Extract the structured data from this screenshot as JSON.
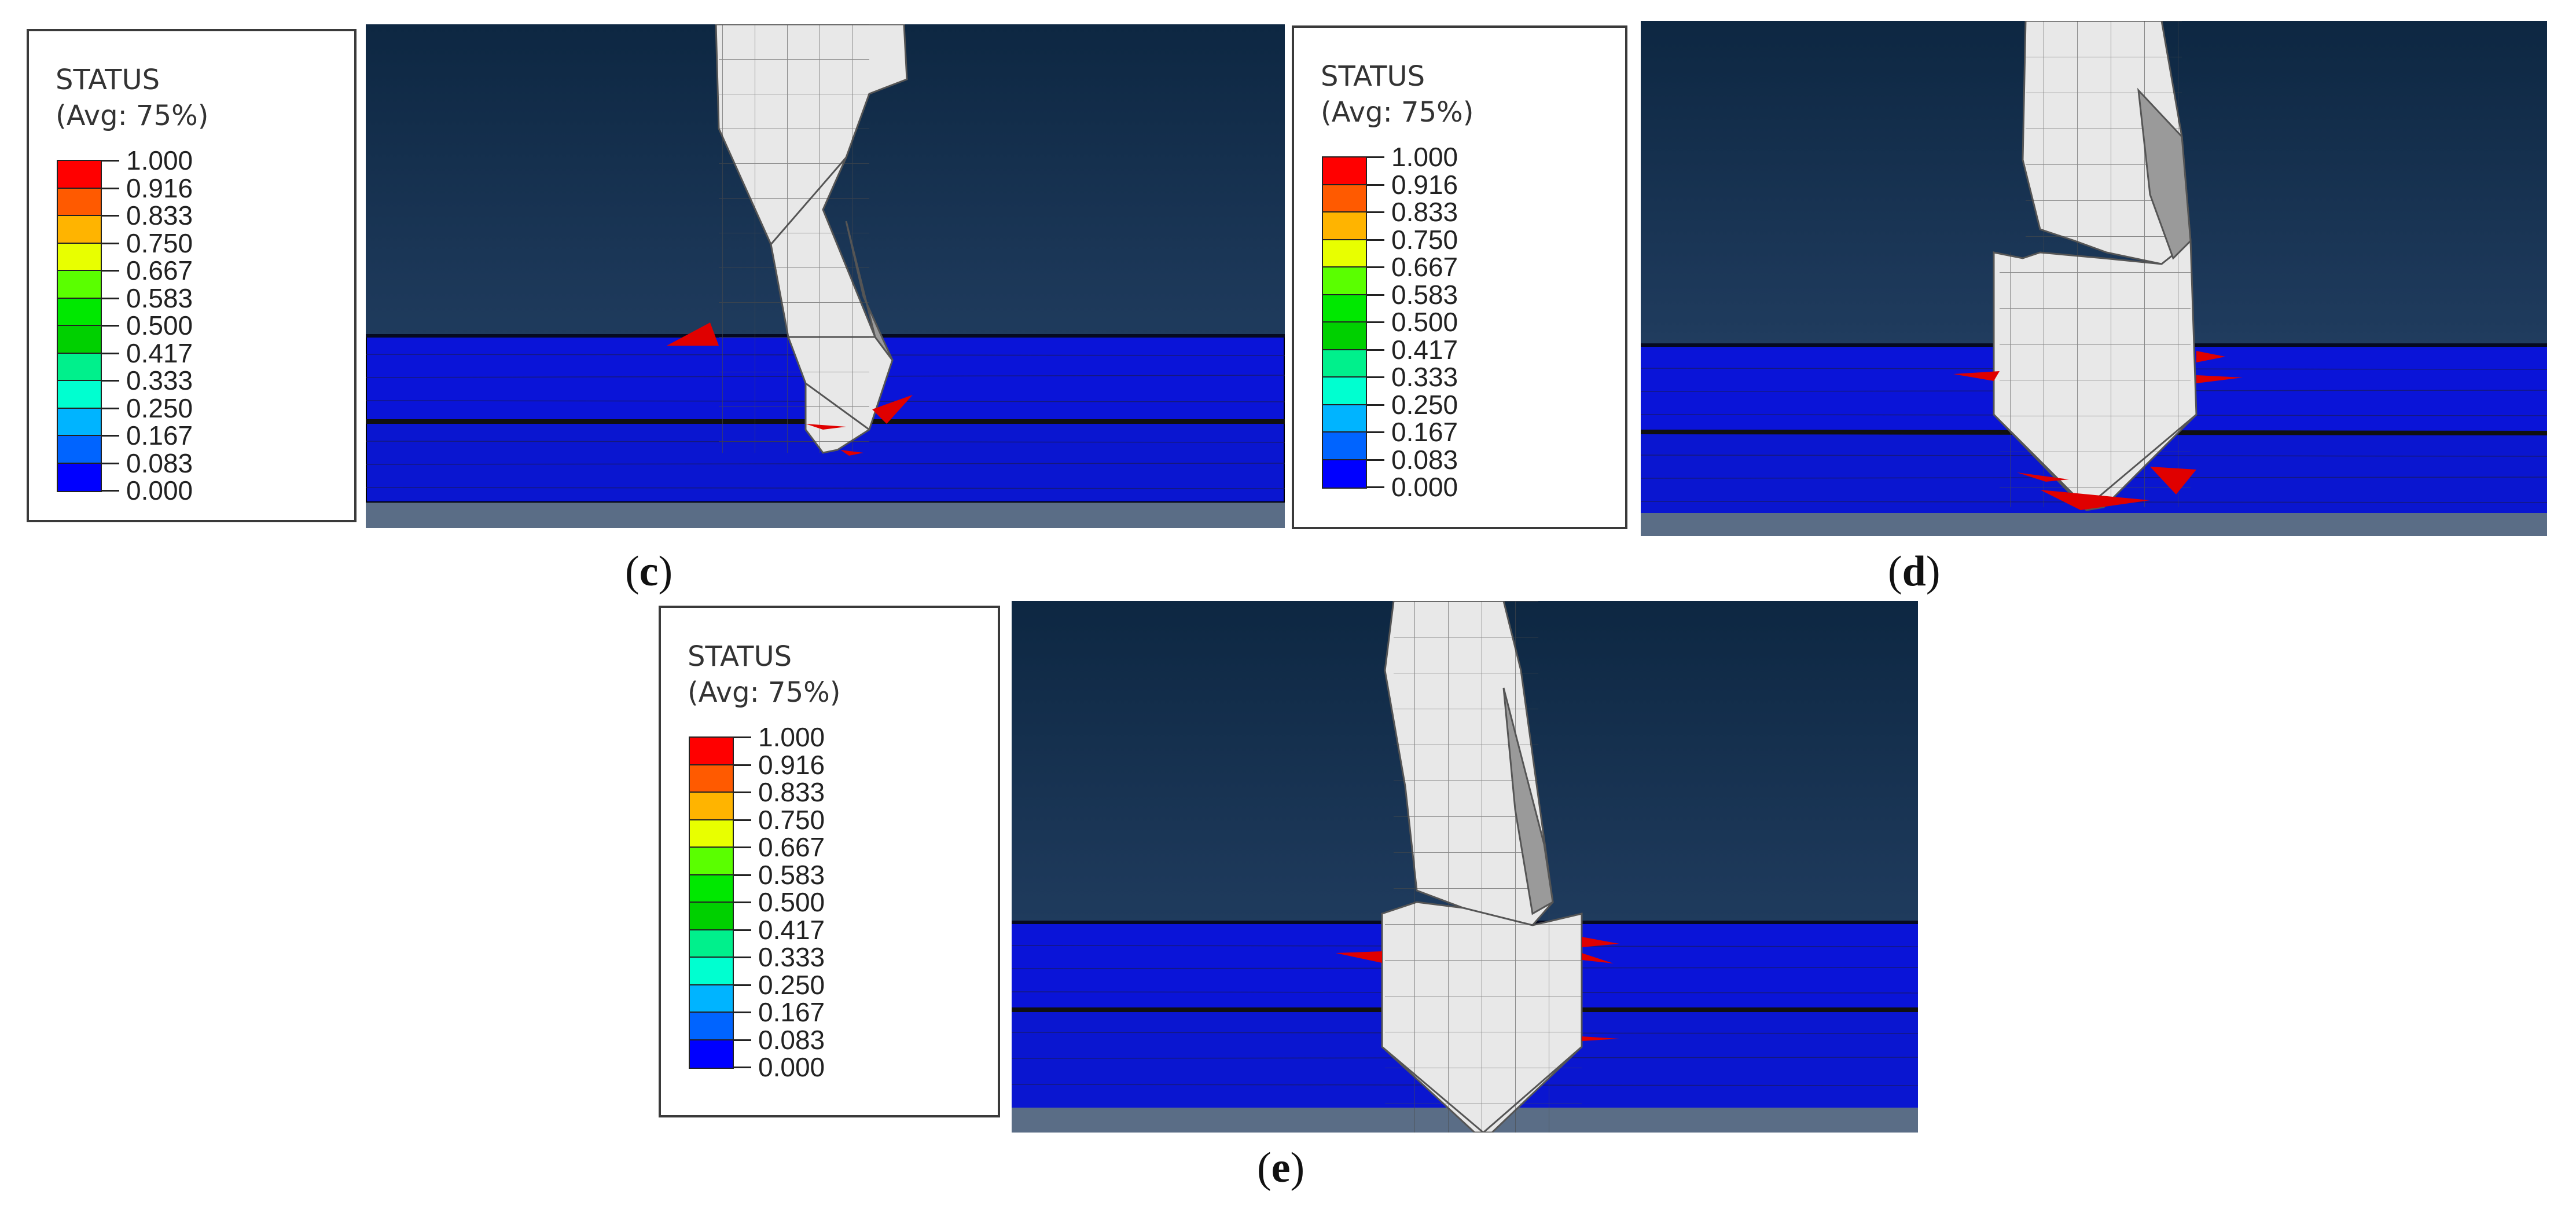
{
  "legend": {
    "title": "STATUS",
    "avg": "(Avg: 75%)",
    "values": [
      "1.000",
      "0.916",
      "0.833",
      "0.750",
      "0.667",
      "0.583",
      "0.500",
      "0.417",
      "0.333",
      "0.250",
      "0.167",
      "0.083",
      "0.000"
    ],
    "colors": [
      "#ff0000",
      "#ff5a00",
      "#ffb400",
      "#e8ff00",
      "#5aff00",
      "#00e800",
      "#00d000",
      "#00f08c",
      "#00ffd0",
      "#00b4ff",
      "#0064ff",
      "#0000ff"
    ]
  },
  "panels": [
    {
      "id": "c",
      "caption_letter": "c"
    },
    {
      "id": "d",
      "caption_letter": "d"
    },
    {
      "id": "e",
      "caption_letter": "e"
    }
  ],
  "colors": {
    "background_top": "#0d2742",
    "background_bottom": "#2e4a6e",
    "laminate": "#0a14d8",
    "damage": "#e00000",
    "drill": "#e8e8e8"
  },
  "drill_icon": "drill-bit",
  "caption_format": "(x)"
}
